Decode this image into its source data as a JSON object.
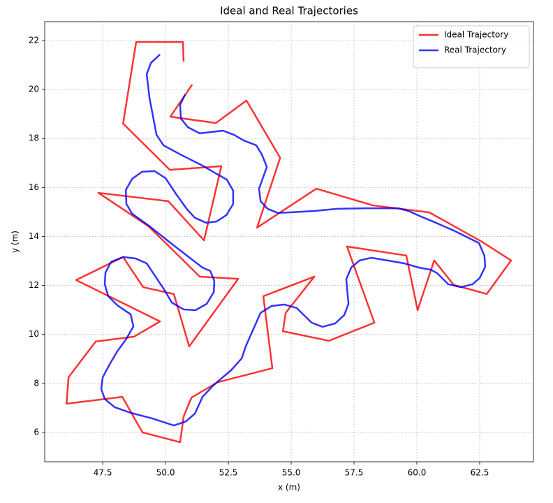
{
  "chart_data": {
    "type": "line",
    "title": "Ideal and Real Trajectories",
    "x_label": "x (m)",
    "y_label": "y (m)",
    "xlim": [
      45.19,
      64.64
    ],
    "ylim": [
      4.8,
      22.77
    ],
    "xticks": [
      {
        "value": 47.5,
        "label": "47.5"
      },
      {
        "value": 50.0,
        "label": "50.0"
      },
      {
        "value": 52.5,
        "label": "52.5"
      },
      {
        "value": 55.0,
        "label": "55.0"
      },
      {
        "value": 57.5,
        "label": "57.5"
      },
      {
        "value": 60.0,
        "label": "60.0"
      },
      {
        "value": 62.5,
        "label": "62.5"
      }
    ],
    "yticks": [
      6,
      8,
      10,
      12,
      14,
      16,
      18,
      20,
      22
    ],
    "grid": true,
    "legend": "upper right",
    "series": [
      {
        "name": "Ideal Trajectory",
        "color": "#ff0000",
        "x": [
          50.72,
          50.69,
          48.83,
          48.31,
          50.17,
          52.22,
          51.53,
          50.11,
          47.33,
          49.33,
          51.36,
          52.89,
          50.94,
          50.33,
          49.11,
          48.31,
          46.44,
          49.78,
          48.75,
          47.22,
          46.14,
          46.06,
          48.28,
          49.08,
          50.58,
          50.72,
          51.03,
          52.08,
          54.25,
          53.89,
          55.92,
          54.78,
          54.67,
          56.5,
          58.31,
          57.22,
          59.58,
          60.03,
          60.69,
          61.47,
          62.78,
          63.75,
          62.58,
          60.5,
          58.25,
          56.0,
          53.64,
          54.56,
          53.22,
          52.0,
          50.19,
          51.06
        ],
        "y": [
          21.14,
          21.94,
          21.94,
          18.61,
          16.72,
          16.87,
          13.84,
          15.44,
          15.78,
          14.41,
          12.36,
          12.27,
          9.51,
          11.65,
          11.93,
          13.16,
          12.22,
          10.53,
          9.91,
          9.71,
          8.25,
          7.17,
          7.45,
          6.0,
          5.6,
          6.65,
          7.42,
          8.05,
          8.62,
          11.56,
          12.36,
          10.88,
          10.13,
          9.74,
          10.48,
          13.59,
          13.22,
          10.99,
          13.02,
          12.02,
          11.65,
          13.02,
          13.79,
          14.98,
          15.27,
          15.95,
          14.36,
          17.21,
          19.55,
          18.63,
          18.89,
          20.2
        ]
      },
      {
        "name": "Real Trajectory",
        "color": "#0000ff",
        "x": [
          49.78,
          49.42,
          49.25,
          49.36,
          49.64,
          49.92,
          50.64,
          51.42,
          51.94,
          52.44,
          52.69,
          52.69,
          52.42,
          52.03,
          51.61,
          51.17,
          50.86,
          50.42,
          50.0,
          49.56,
          49.06,
          48.67,
          48.42,
          48.44,
          48.67,
          49.33,
          50.17,
          50.92,
          51.47,
          51.78,
          51.94,
          51.92,
          51.64,
          51.19,
          50.72,
          50.25,
          49.92,
          49.64,
          49.25,
          48.81,
          48.31,
          47.83,
          47.61,
          47.58,
          47.72,
          48.08,
          48.61,
          48.72,
          48.44,
          48.08,
          47.78,
          47.5,
          47.44,
          47.58,
          47.97,
          48.61,
          49.47,
          50.33,
          50.81,
          51.17,
          51.47,
          51.92,
          52.61,
          53.03,
          53.19,
          53.78,
          54.22,
          54.72,
          55.22,
          55.81,
          56.25,
          56.75,
          57.11,
          57.28,
          57.19,
          57.39,
          57.72,
          58.19,
          58.72,
          59.5,
          60.08,
          60.56,
          60.81,
          61.25,
          61.75,
          62.22,
          62.5,
          62.72,
          62.69,
          62.47,
          61.47,
          60.64,
          60.17,
          59.67,
          59.25,
          58.0,
          56.83,
          55.92,
          54.89,
          54.47,
          54.06,
          53.78,
          53.72,
          54.03,
          53.83,
          53.61,
          53.11,
          52.72,
          52.28,
          51.36,
          50.89,
          50.61,
          50.58,
          50.78
        ],
        "y": [
          21.43,
          21.09,
          20.63,
          19.66,
          18.15,
          17.72,
          17.32,
          16.92,
          16.61,
          16.32,
          15.87,
          15.33,
          14.87,
          14.61,
          14.56,
          14.76,
          15.1,
          15.73,
          16.38,
          16.67,
          16.64,
          16.35,
          15.9,
          15.33,
          14.93,
          14.44,
          13.76,
          13.16,
          12.73,
          12.59,
          12.19,
          11.73,
          11.25,
          10.99,
          11.02,
          11.3,
          11.87,
          12.3,
          12.9,
          13.1,
          13.16,
          12.96,
          12.53,
          12.05,
          11.56,
          11.19,
          10.82,
          10.33,
          9.82,
          9.31,
          8.79,
          8.25,
          7.77,
          7.37,
          7.03,
          6.8,
          6.57,
          6.28,
          6.45,
          6.77,
          7.45,
          7.94,
          8.54,
          9.02,
          9.51,
          10.88,
          11.16,
          11.22,
          11.08,
          10.48,
          10.31,
          10.45,
          10.79,
          11.25,
          12.25,
          12.73,
          13.02,
          13.13,
          13.04,
          12.9,
          12.73,
          12.64,
          12.5,
          12.05,
          11.93,
          12.05,
          12.3,
          12.76,
          13.21,
          13.73,
          14.24,
          14.61,
          14.81,
          15.04,
          15.15,
          15.15,
          15.13,
          15.04,
          14.98,
          14.96,
          15.13,
          15.44,
          15.95,
          16.84,
          17.35,
          17.72,
          17.92,
          18.15,
          18.32,
          18.21,
          18.46,
          18.81,
          19.38,
          19.8
        ]
      }
    ]
  }
}
